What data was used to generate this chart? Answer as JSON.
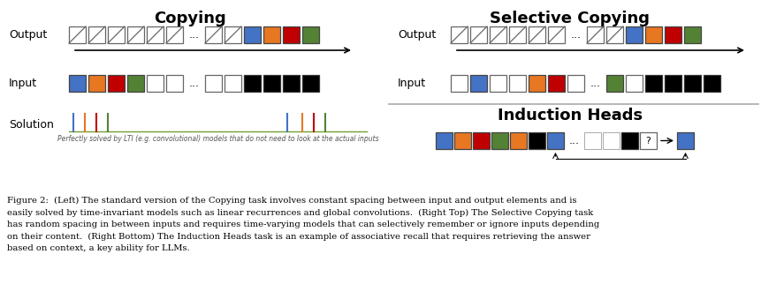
{
  "title_copying": "Copying",
  "title_selective": "Selective Copying",
  "title_induction": "Induction Heads",
  "colors": {
    "blue": "#4472C4",
    "orange": "#E87722",
    "red": "#C00000",
    "green": "#548235",
    "black": "#000000",
    "white": "#FFFFFF"
  },
  "solution_label": "Perfectly solved by LTI (e.g. convolutional) models that do not need to look at the actual inputs",
  "caption_line1": "Figure 2:  (Left) The standard version of the Copying task involves constant spacing between input and output elements and is",
  "caption_line2": "easily solved by time-invariant models such as linear recurrences and global convolutions.  (Right Top) The Selective Copying task",
  "caption_line3": "has random spacing in between inputs and requires time-varying models that can selectively remember or ignore inputs depending",
  "caption_line4": "on their content.  (Right Bottom) The Induction Heads task is an example of associative recall that requires retrieving the answer",
  "caption_line5": "based on context, a key ability for LLMs."
}
